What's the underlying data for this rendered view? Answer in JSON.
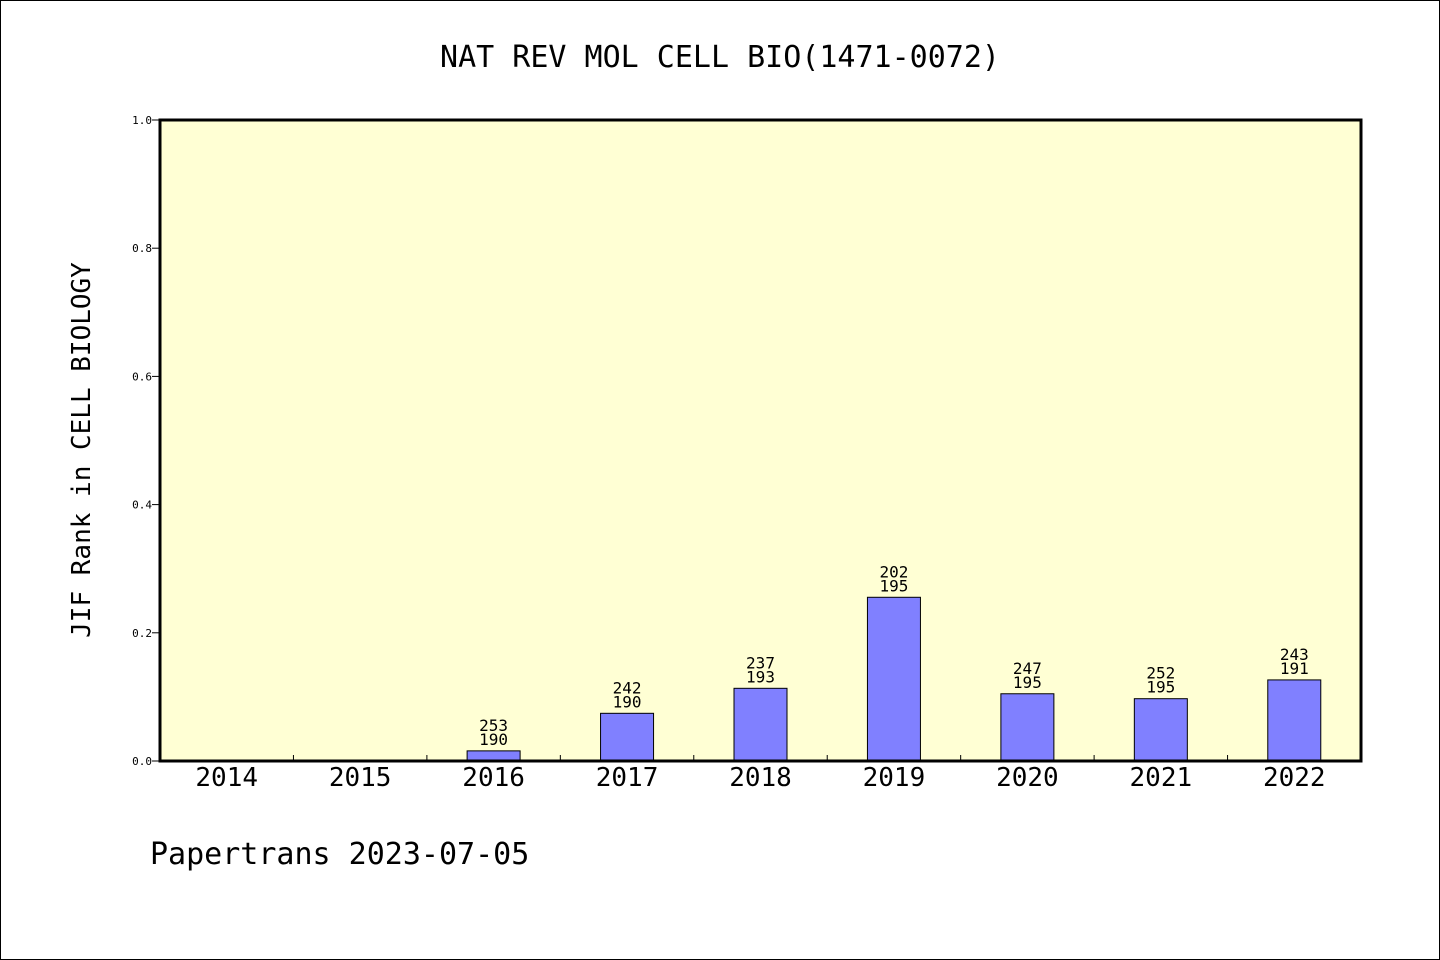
{
  "chart_data": {
    "type": "bar",
    "title": "NAT REV MOL CELL BIO(1471-0072)",
    "ylabel": "JIF Rank in CELL BIOLOGY",
    "xlabel": "",
    "categories": [
      "2014",
      "2015",
      "2016",
      "2017",
      "2018",
      "2019",
      "2020",
      "2021",
      "2022"
    ],
    "values": [
      0,
      0,
      0.0158,
      0.0744,
      0.1134,
      0.2554,
      0.1049,
      0.0972,
      0.1265
    ],
    "label_top": [
      "",
      "",
      "253",
      "242",
      "237",
      "202",
      "247",
      "252",
      "243"
    ],
    "label_bottom": [
      "",
      "",
      "190",
      "190",
      "193",
      "195",
      "195",
      "195",
      "191"
    ],
    "ylim": [
      0,
      1.0
    ],
    "yticks": [
      "0.0",
      "0.2",
      "0.4",
      "0.6",
      "0.8",
      "1.0"
    ],
    "grid": false,
    "plot_background": "#ffffd4",
    "bar_color": "#8080ff"
  },
  "footer": {
    "text": "Papertrans 2023-07-05"
  }
}
